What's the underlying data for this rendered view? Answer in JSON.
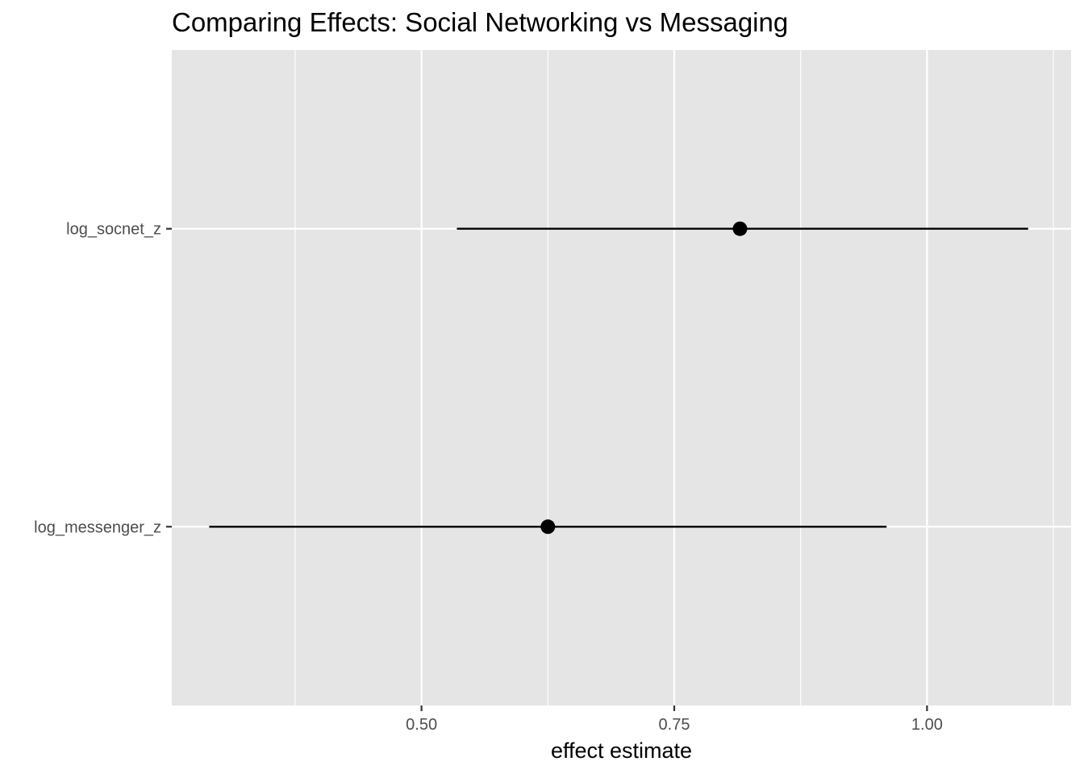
{
  "chart_data": {
    "type": "scatter",
    "subtype": "coefficient-plot",
    "title": "Comparing Effects: Social Networking vs Messaging",
    "xlabel": "effect estimate",
    "ylabel": "",
    "categories": [
      "log_messenger_z",
      "log_socnet_z"
    ],
    "points": [
      {
        "term": "log_messenger_z",
        "estimate": 0.625,
        "lower": 0.29,
        "upper": 0.96
      },
      {
        "term": "log_socnet_z",
        "estimate": 0.815,
        "lower": 0.535,
        "upper": 1.1
      }
    ],
    "x_ticks": [
      {
        "value": 0.5,
        "label": "0.50"
      },
      {
        "value": 0.75,
        "label": "0.75"
      },
      {
        "value": 1.0,
        "label": "1.00"
      }
    ],
    "x_minor": [
      0.375,
      0.625,
      0.875,
      1.125
    ],
    "xlim": [
      0.253,
      1.1425
    ],
    "grid": true,
    "legend": "none",
    "colors": {
      "panel": "#e5e5e5",
      "grid": "#ffffff",
      "mark": "#000000",
      "tick_label": "#4d4d4d",
      "tick": "#333333"
    }
  }
}
